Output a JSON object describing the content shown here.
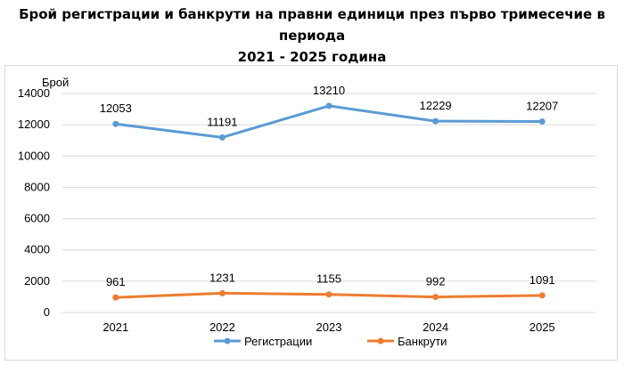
{
  "title": {
    "line1": "Брой регистрации и банкрути на правни единици през първо тримесечие в периода",
    "line2": "2021 - 2025 година"
  },
  "chart_data": {
    "type": "line",
    "title": "Брой регистрации и банкрути на правни единици през първо тримесечие в периода 2021 - 2025 година",
    "ylabel": "Брой",
    "xlabel": "",
    "categories": [
      "2021",
      "2022",
      "2023",
      "2024",
      "2025"
    ],
    "ylim": [
      0,
      14000
    ],
    "yticks": [
      0,
      2000,
      4000,
      6000,
      8000,
      10000,
      12000,
      14000
    ],
    "grid": true,
    "legend_position": "bottom",
    "series": [
      {
        "name": "Регистрации",
        "color": "#5b9bd5",
        "values": [
          12053,
          11191,
          13210,
          12229,
          12207
        ]
      },
      {
        "name": "Банкрути",
        "color": "#ed7d31",
        "values": [
          961,
          1231,
          1155,
          992,
          1091
        ]
      }
    ]
  }
}
